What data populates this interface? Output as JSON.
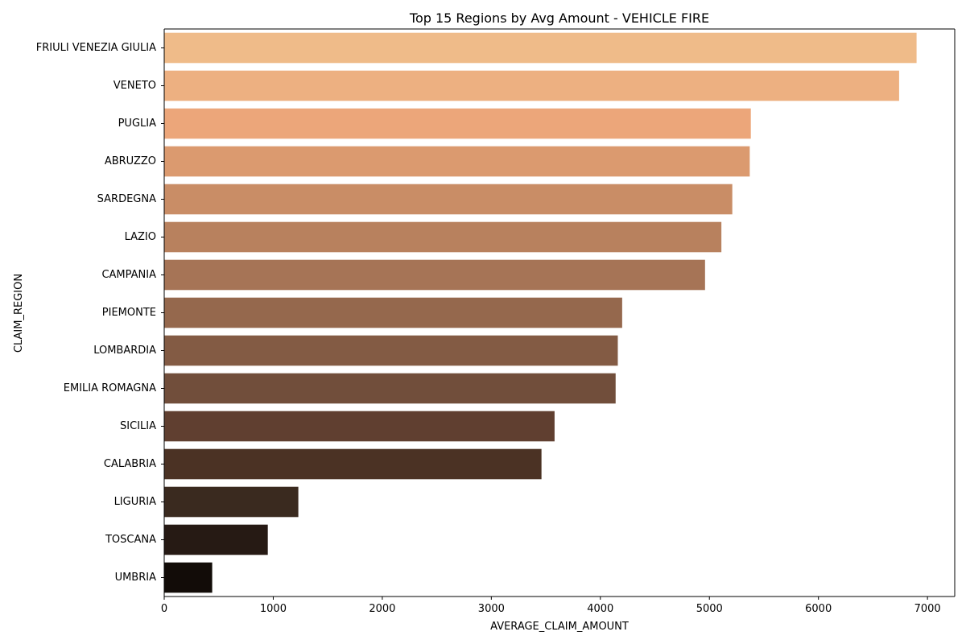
{
  "chart_data": {
    "type": "bar",
    "orientation": "horizontal",
    "title": "Top 15 Regions by Avg Amount - VEHICLE FIRE",
    "xlabel": "AVERAGE_CLAIM_AMOUNT",
    "ylabel": "CLAIM_REGION",
    "xlim": [
      0,
      7250
    ],
    "xticks": [
      0,
      1000,
      2000,
      3000,
      4000,
      5000,
      6000,
      7000
    ],
    "grid": false,
    "categories": [
      "FRIULI VENEZIA GIULIA",
      "VENETO",
      "PUGLIA",
      "ABRUZZO",
      "SARDEGNA",
      "LAZIO",
      "CAMPANIA",
      "PIEMONTE",
      "LOMBARDIA",
      "EMILIA ROMAGNA",
      "SICILIA",
      "CALABRIA",
      "LIGURIA",
      "TOSCANA",
      "UMBRIA"
    ],
    "values": [
      6900,
      6740,
      5380,
      5370,
      5210,
      5110,
      4960,
      4200,
      4160,
      4140,
      3580,
      3460,
      1230,
      950,
      440
    ],
    "colors": [
      "#efbb89",
      "#edb081",
      "#eca67a",
      "#db9a6f",
      "#c98d66",
      "#b8815e",
      "#a67456",
      "#95684d",
      "#835b44",
      "#714e3b",
      "#603f30",
      "#4b3224",
      "#3a2a1f",
      "#261a14",
      "#120c08"
    ]
  }
}
